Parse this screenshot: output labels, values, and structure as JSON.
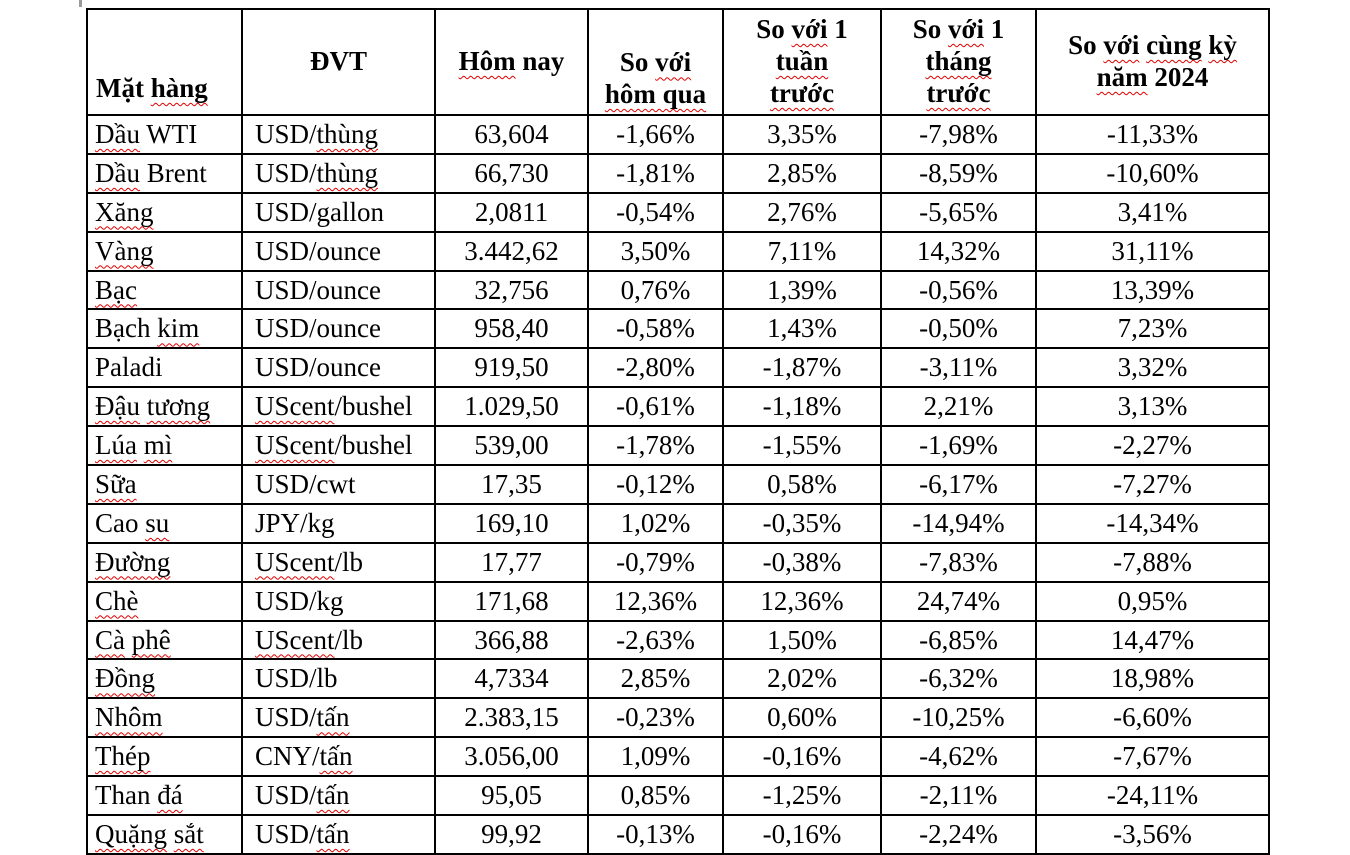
{
  "colors": {
    "background": "#ffffff",
    "text": "#000000",
    "table_border": "#000000",
    "spellcheck_underline": "#e00000"
  },
  "table": {
    "columns": [
      {
        "key": "name",
        "label": "Mặt ~hàng~"
      },
      {
        "key": "unit",
        "label": "ĐVT"
      },
      {
        "key": "today",
        "label": "~Hôm~ nay"
      },
      {
        "key": "vs_yesterday",
        "label": "So ~với~\n~hôm qua~"
      },
      {
        "key": "vs_week",
        "label": "So ~với~ 1\n~tuần~\n~trước~"
      },
      {
        "key": "vs_month",
        "label": "So ~với~ 1\n~tháng~\n~trước~"
      },
      {
        "key": "vs_2024",
        "label": "So ~với~ ~cùng~ ~kỳ~\n~năm~ 2024"
      }
    ],
    "rows": [
      {
        "name": "~Dầu~ WTI",
        "unit": "USD/~thùng~",
        "today": "63,604",
        "vs_yesterday": "-1,66%",
        "vs_week": "3,35%",
        "vs_month": "-7,98%",
        "vs_2024": "-11,33%"
      },
      {
        "name": "~Dầu~ Brent",
        "unit": "USD/~thùng~",
        "today": "66,730",
        "vs_yesterday": "-1,81%",
        "vs_week": "2,85%",
        "vs_month": "-8,59%",
        "vs_2024": "-10,60%"
      },
      {
        "name": "~Xăng~",
        "unit": "USD/gallon",
        "today": "2,0811",
        "vs_yesterday": "-0,54%",
        "vs_week": "2,76%",
        "vs_month": "-5,65%",
        "vs_2024": "3,41%"
      },
      {
        "name": "~Vàng~",
        "unit": "USD/ounce",
        "today": "3.442,62",
        "vs_yesterday": "3,50%",
        "vs_week": "7,11%",
        "vs_month": "14,32%",
        "vs_2024": "31,11%"
      },
      {
        "name": "~Bạc~",
        "unit": "USD/ounce",
        "today": "32,756",
        "vs_yesterday": "0,76%",
        "vs_week": "1,39%",
        "vs_month": "-0,56%",
        "vs_2024": "13,39%"
      },
      {
        "name": "Bạch ~kim~",
        "unit": "USD/ounce",
        "today": "958,40",
        "vs_yesterday": "-0,58%",
        "vs_week": "1,43%",
        "vs_month": "-0,50%",
        "vs_2024": "7,23%"
      },
      {
        "name": "Paladi",
        "unit": "USD/ounce",
        "today": "919,50",
        "vs_yesterday": "-2,80%",
        "vs_week": "-1,87%",
        "vs_month": "-3,11%",
        "vs_2024": "3,32%"
      },
      {
        "name": "~Đậu~ ~tương~",
        "unit": "~UScent~/bushel",
        "today": "1.029,50",
        "vs_yesterday": "-0,61%",
        "vs_week": "-1,18%",
        "vs_month": "2,21%",
        "vs_2024": "3,13%"
      },
      {
        "name": "~Lúa~ ~mì~",
        "unit": "~UScent~/bushel",
        "today": "539,00",
        "vs_yesterday": "-1,78%",
        "vs_week": "-1,55%",
        "vs_month": "-1,69%",
        "vs_2024": "-2,27%"
      },
      {
        "name": "~Sữa~",
        "unit": "USD/cwt",
        "today": "17,35",
        "vs_yesterday": "-0,12%",
        "vs_week": "0,58%",
        "vs_month": "-6,17%",
        "vs_2024": "-7,27%"
      },
      {
        "name": "Cao ~su~",
        "unit": "JPY/kg",
        "today": "169,10",
        "vs_yesterday": "1,02%",
        "vs_week": "-0,35%",
        "vs_month": "-14,94%",
        "vs_2024": "-14,34%"
      },
      {
        "name": "~Đường~",
        "unit": "~UScent~/lb",
        "today": "17,77",
        "vs_yesterday": "-0,79%",
        "vs_week": "-0,38%",
        "vs_month": "-7,83%",
        "vs_2024": "-7,88%"
      },
      {
        "name": "~Chè~",
        "unit": "USD/kg",
        "today": "171,68",
        "vs_yesterday": "12,36%",
        "vs_week": "12,36%",
        "vs_month": "24,74%",
        "vs_2024": "0,95%"
      },
      {
        "name": "~Cà~ ~phê~",
        "unit": "~UScent~/lb",
        "today": "366,88",
        "vs_yesterday": "-2,63%",
        "vs_week": "1,50%",
        "vs_month": "-6,85%",
        "vs_2024": "14,47%"
      },
      {
        "name": "~Đồng~",
        "unit": "USD/lb",
        "today": "4,7334",
        "vs_yesterday": "2,85%",
        "vs_week": "2,02%",
        "vs_month": "-6,32%",
        "vs_2024": "18,98%"
      },
      {
        "name": "~Nhôm~",
        "unit": "USD/~tấn~",
        "today": "2.383,15",
        "vs_yesterday": "-0,23%",
        "vs_week": "0,60%",
        "vs_month": "-10,25%",
        "vs_2024": "-6,60%"
      },
      {
        "name": "~Thép~",
        "unit": "CNY/~tấn~",
        "today": "3.056,00",
        "vs_yesterday": "1,09%",
        "vs_week": "-0,16%",
        "vs_month": "-4,62%",
        "vs_2024": "-7,67%"
      },
      {
        "name": "Than ~đá~",
        "unit": "USD/~tấn~",
        "today": "95,05",
        "vs_yesterday": "0,85%",
        "vs_week": "-1,25%",
        "vs_month": "-2,11%",
        "vs_2024": "-24,11%"
      },
      {
        "name": "~Quặng~ ~sắt~",
        "unit": "USD/~tấn~",
        "today": "99,92",
        "vs_yesterday": "-0,13%",
        "vs_week": "-0,16%",
        "vs_month": "-2,24%",
        "vs_2024": "-3,56%"
      }
    ]
  }
}
